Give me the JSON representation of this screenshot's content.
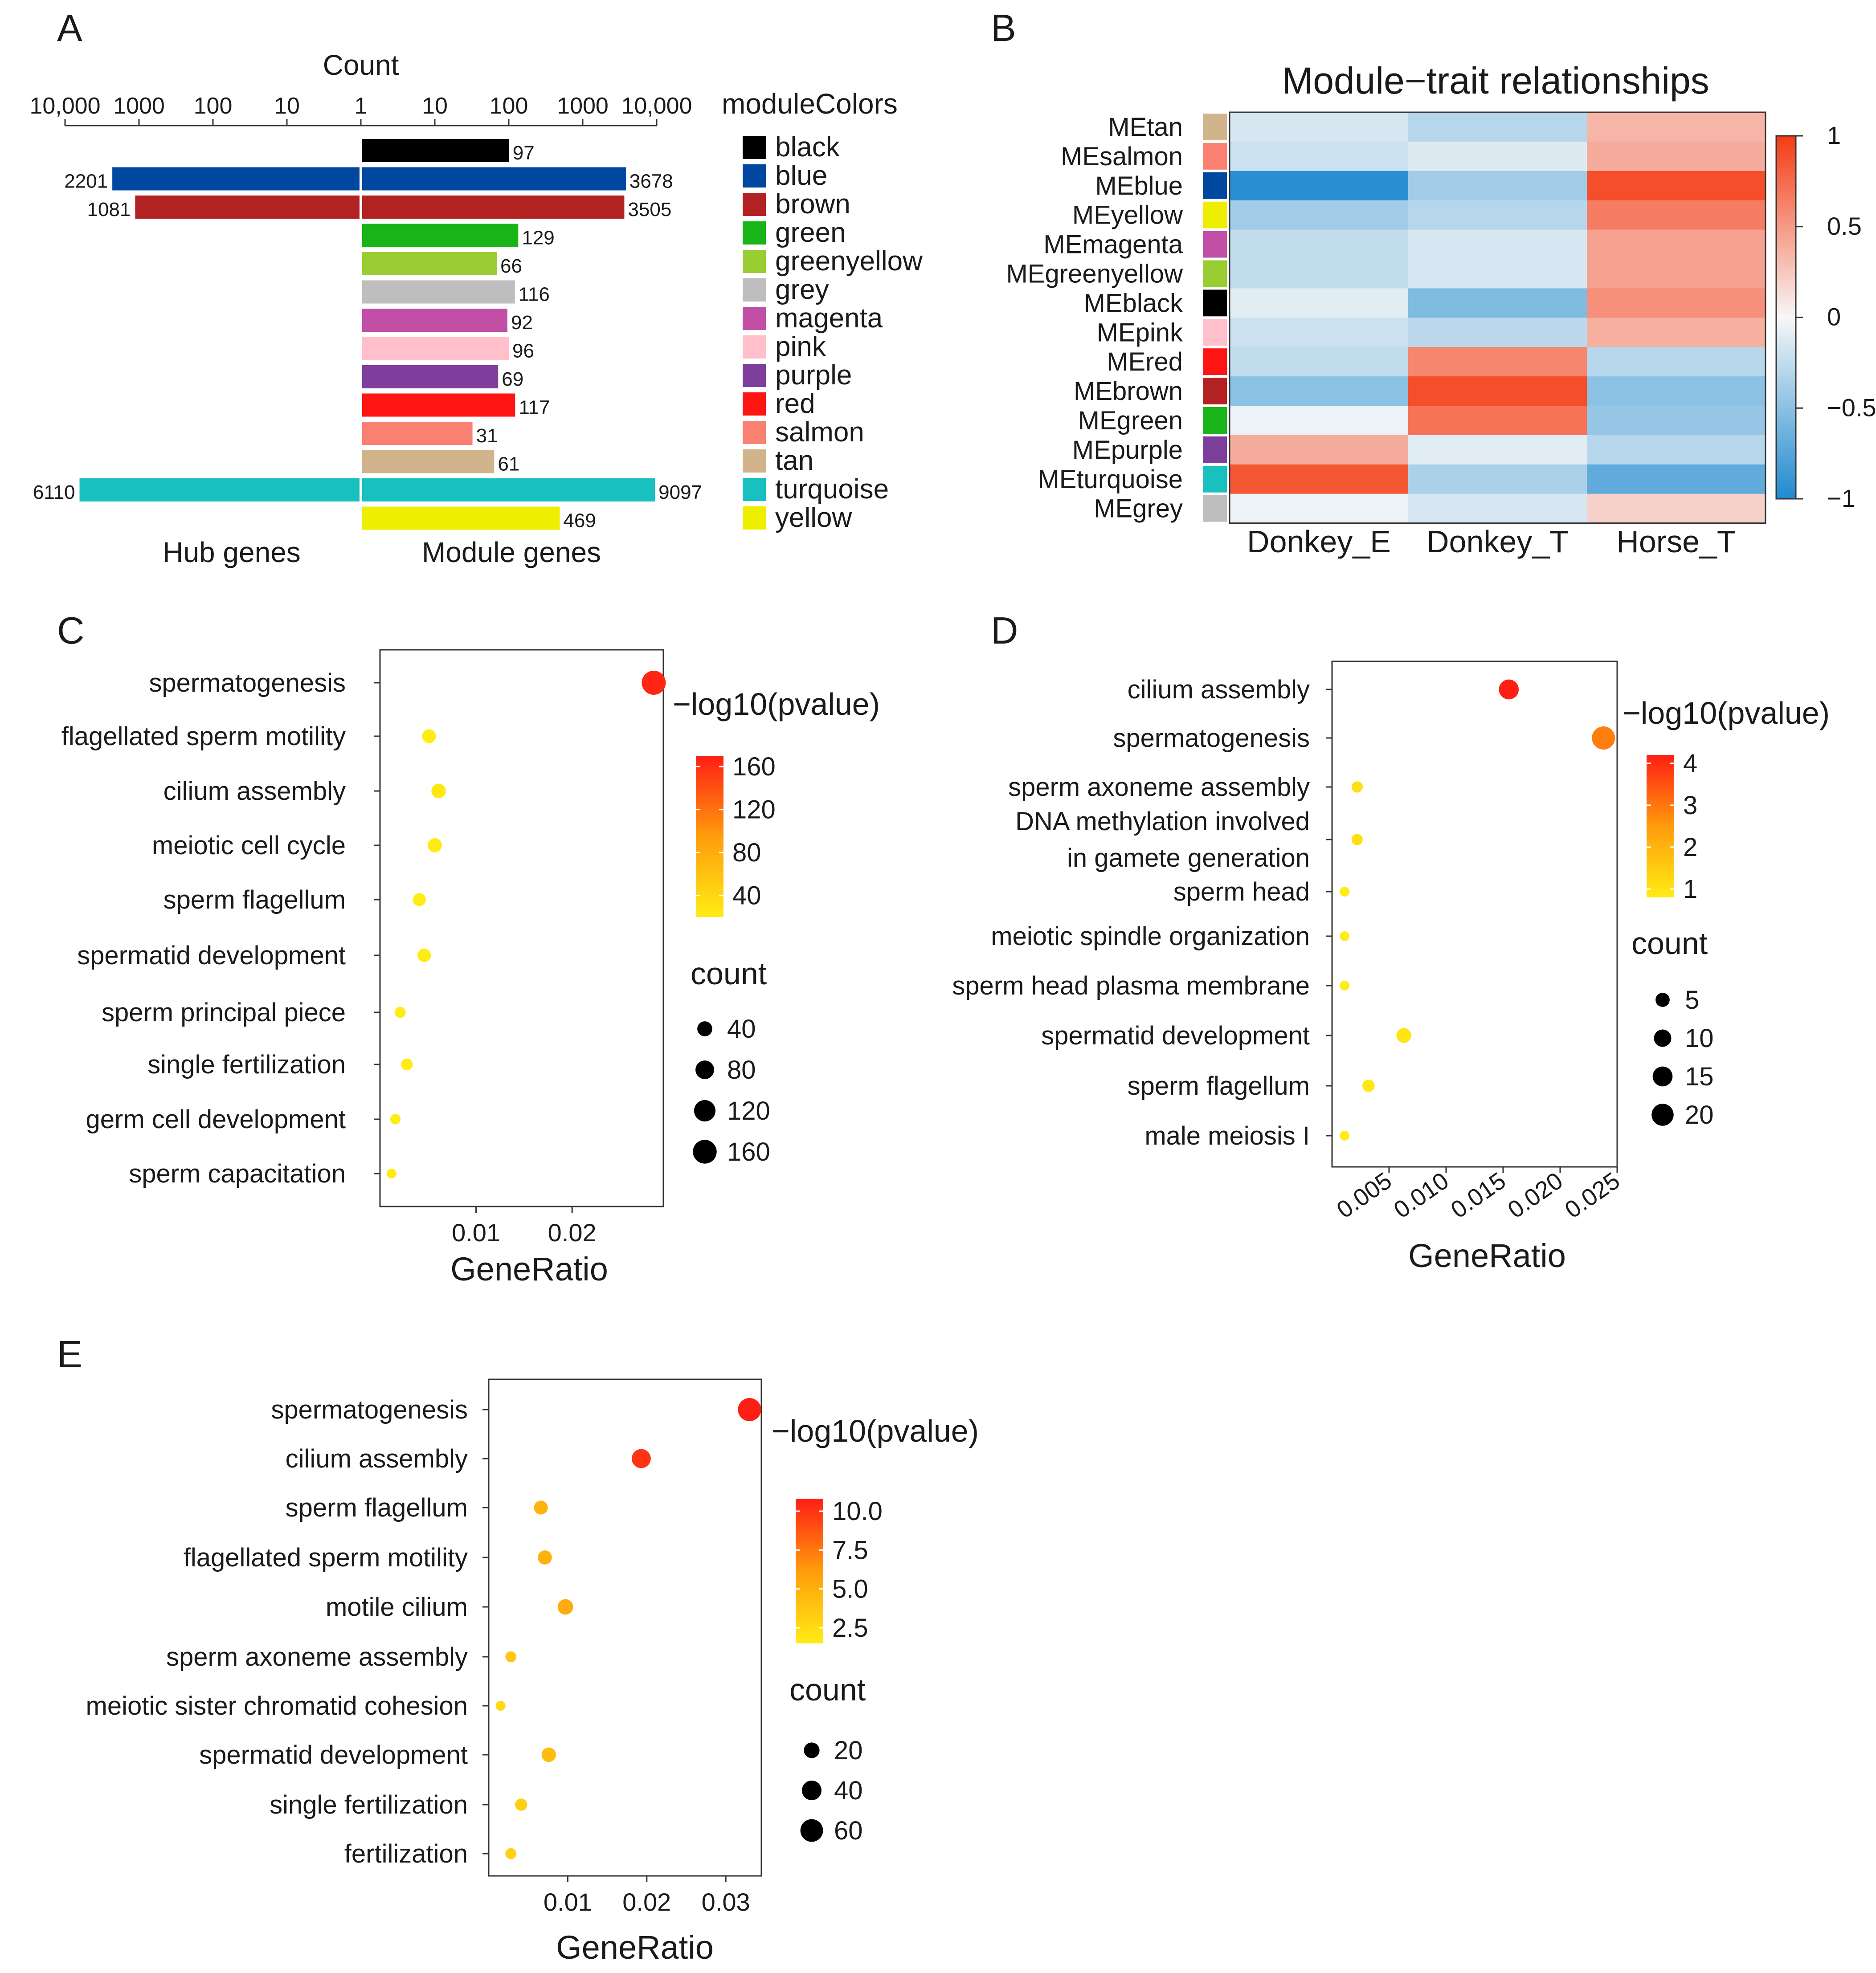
{
  "figure": {
    "panel_letters": [
      "A",
      "B",
      "C",
      "D",
      "E"
    ]
  },
  "chart_data": [
    {
      "panel": "A",
      "type": "bar",
      "title": "Count",
      "axis_ticks": [
        "10,000",
        "1000",
        "100",
        "10",
        "1",
        "10",
        "100",
        "1000",
        "10,000"
      ],
      "xlabel_left": "Hub genes",
      "xlabel_right": "Module genes",
      "legend_title": "moduleColors",
      "scale": "log10",
      "categories": [
        "black",
        "blue",
        "brown",
        "green",
        "greenyellow",
        "grey",
        "magenta",
        "pink",
        "purple",
        "red",
        "salmon",
        "tan",
        "turquoise",
        "yellow"
      ],
      "colors": [
        "#000000",
        "#0047a0",
        "#b22222",
        "#18b418",
        "#9acd32",
        "#bebebe",
        "#c24fa6",
        "#ffc0cb",
        "#7d3e9c",
        "#ff1414",
        "#fa8072",
        "#d2b48c",
        "#18c0c0",
        "#eeee00"
      ],
      "series": [
        {
          "name": "Hub genes",
          "values": [
            null,
            2201,
            1081,
            null,
            null,
            null,
            null,
            null,
            null,
            null,
            null,
            null,
            6110,
            null
          ],
          "labels": [
            "",
            "2201",
            "1081",
            "",
            "",
            "",
            "",
            "",
            "",
            "",
            "",
            "",
            "6110",
            ""
          ]
        },
        {
          "name": "Module genes",
          "values": [
            97,
            3678,
            3505,
            129,
            66,
            116,
            92,
            96,
            69,
            117,
            31,
            61,
            9097,
            469
          ],
          "labels": [
            "97",
            "3678",
            "3505",
            "129",
            "66",
            "116",
            "92",
            "96",
            "69",
            "117",
            "31",
            "61",
            "9097",
            "469"
          ]
        }
      ]
    },
    {
      "panel": "B",
      "type": "heatmap",
      "title": "Module−trait relationships",
      "rows": [
        "MEtan",
        "MEsalmon",
        "MEblue",
        "MEyellow",
        "MEmagenta",
        "MEgreenyellow",
        "MEblack",
        "MEpink",
        "MEred",
        "MEbrown",
        "MEgreen",
        "MEpurple",
        "MEturquoise",
        "MEgrey"
      ],
      "row_colors": [
        "#d2b48c",
        "#fa8072",
        "#0047a0",
        "#eeee00",
        "#c24fa6",
        "#9acd32",
        "#000000",
        "#ffc0cb",
        "#ff1414",
        "#b22222",
        "#18b418",
        "#7d3e9c",
        "#18c0c0",
        "#bebebe"
      ],
      "columns": [
        "Donkey_E",
        "Donkey_T",
        "Horse_T"
      ],
      "values": [
        [
          -0.15,
          -0.3,
          0.35
        ],
        [
          -0.2,
          -0.12,
          0.4
        ],
        [
          -0.95,
          -0.4,
          0.9
        ],
        [
          -0.4,
          -0.3,
          0.65
        ],
        [
          -0.25,
          -0.15,
          0.45
        ],
        [
          -0.25,
          -0.15,
          0.45
        ],
        [
          -0.1,
          -0.55,
          0.55
        ],
        [
          -0.2,
          -0.28,
          0.38
        ],
        [
          -0.25,
          0.6,
          -0.3
        ],
        [
          -0.5,
          0.9,
          -0.5
        ],
        [
          -0.05,
          0.7,
          -0.45
        ],
        [
          0.4,
          -0.1,
          -0.3
        ],
        [
          0.85,
          -0.35,
          -0.7
        ],
        [
          -0.05,
          -0.15,
          0.2
        ]
      ],
      "colorbar_ticks": [
        "1",
        "0.5",
        "0",
        "−0.5",
        "−1"
      ],
      "colorbar_range": [
        -1,
        1
      ]
    },
    {
      "panel": "C",
      "type": "scatter",
      "xlabel": "GeneRatio",
      "x_ticks": [
        "0.01",
        "0.02"
      ],
      "xlim": [
        0,
        0.0295
      ],
      "terms": [
        "spermatogenesis",
        "flagellated sperm motility",
        "cilium assembly",
        "meiotic cell cycle",
        "sperm flagellum",
        "spermatid development",
        "sperm principal piece",
        "single fertilization",
        "germ cell development",
        "sperm capacitation"
      ],
      "x": [
        0.0285,
        0.0051,
        0.0061,
        0.0057,
        0.0041,
        0.0046,
        0.0021,
        0.0028,
        0.0016,
        0.0012
      ],
      "count": [
        165,
        30,
        35,
        33,
        24,
        27,
        12,
        16,
        9,
        7
      ],
      "neglog10p": [
        165,
        20,
        25,
        22,
        15,
        18,
        8,
        11,
        6,
        5
      ],
      "color_title": "−log10(pvalue)",
      "color_ticks": [
        "160",
        "120",
        "80",
        "40"
      ],
      "color_range": [
        20,
        170
      ],
      "size_title": "count",
      "size_ticks": [
        "40",
        "80",
        "120",
        "160"
      ]
    },
    {
      "panel": "D",
      "type": "scatter",
      "xlabel": "GeneRatio",
      "x_ticks": [
        "0.005",
        "0.010",
        "0.015",
        "0.020",
        "0.025"
      ],
      "xlim": [
        0,
        0.025
      ],
      "terms": [
        "cilium assembly",
        "spermatogenesis",
        "sperm axoneme assembly",
        "DNA methylation involved in gamete generation",
        "sperm head",
        "meiotic spindle organization",
        "sperm head plasma membrane",
        "spermatid development",
        "sperm flagellum",
        "male meiosis I"
      ],
      "term_lines": [
        [
          "cilium assembly"
        ],
        [
          "spermatogenesis"
        ],
        [
          "sperm axoneme assembly"
        ],
        [
          "DNA methylation involved",
          "in gamete generation"
        ],
        [
          "sperm head"
        ],
        [
          "meiotic spindle organization"
        ],
        [
          "sperm head plasma membrane"
        ],
        [
          "spermatid development"
        ],
        [
          "sperm flagellum"
        ],
        [
          "male meiosis I"
        ]
      ],
      "x": [
        0.0155,
        0.0238,
        0.0022,
        0.0022,
        0.0011,
        0.0011,
        0.0011,
        0.0063,
        0.0032,
        0.0011
      ],
      "count": [
        15,
        23,
        2,
        2,
        1,
        1,
        1,
        6,
        3,
        1
      ],
      "neglog10p": [
        4.2,
        2.9,
        1.1,
        1.1,
        0.8,
        0.8,
        0.8,
        1.0,
        0.9,
        0.8
      ],
      "color_title": "−log10(pvalue)",
      "color_ticks": [
        "4",
        "3",
        "2",
        "1"
      ],
      "color_range": [
        0.8,
        4.2
      ],
      "size_title": "count",
      "size_ticks": [
        "5",
        "10",
        "15",
        "20"
      ]
    },
    {
      "panel": "E",
      "type": "scatter",
      "xlabel": "GeneRatio",
      "x_ticks": [
        "0.01",
        "0.02",
        "0.03"
      ],
      "xlim": [
        0,
        0.0345
      ],
      "terms": [
        "spermatogenesis",
        "cilium assembly",
        "sperm flagellum",
        "flagellated sperm motility",
        "motile cilium",
        "sperm axoneme assembly",
        "meiotic sister chromatid cohesion",
        "spermatid development",
        "single fertilization",
        "fertilization"
      ],
      "x": [
        0.033,
        0.0193,
        0.0066,
        0.0071,
        0.0097,
        0.0028,
        0.0015,
        0.0076,
        0.0041,
        0.0028
      ],
      "count": [
        64,
        37,
        13,
        14,
        19,
        5,
        3,
        15,
        8,
        5
      ],
      "neglog10p": [
        10.8,
        10.0,
        4.8,
        4.9,
        5.2,
        3.6,
        2.6,
        4.3,
        3.2,
        3.1
      ],
      "color_title": "−log10(pvalue)",
      "color_ticks": [
        "10.0",
        "7.5",
        "5.0",
        "2.5"
      ],
      "color_range": [
        1.5,
        10.8
      ],
      "size_title": "count",
      "size_ticks": [
        "20",
        "40",
        "60"
      ]
    }
  ]
}
